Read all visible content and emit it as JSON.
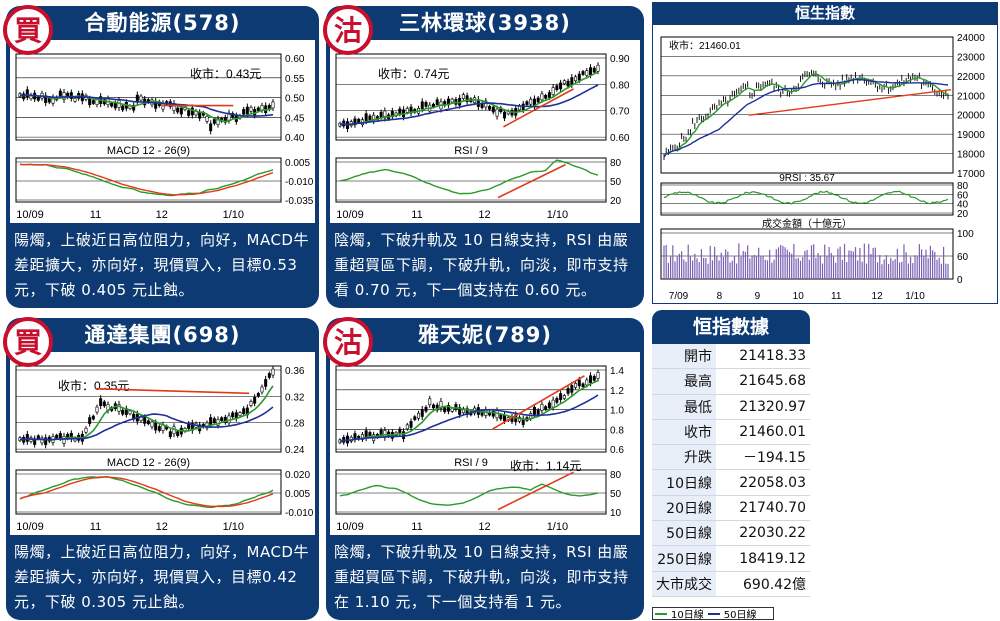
{
  "panels": [
    {
      "title": "合動能源(578)",
      "badge": "買",
      "close_label": "收市：0.43元",
      "indicator_label": "MACD 12 - 26(9)",
      "price_ticks": [
        "0.60",
        "0.55",
        "0.50",
        "0.45",
        "0.40"
      ],
      "ind_ticks": [
        "0.005",
        "-0.010",
        "-0.035"
      ],
      "x_labels": [
        "10/09",
        "11",
        "12",
        "1/10"
      ],
      "desc": "陽燭，上破近日高位阻力，向好，MACD牛差距擴大，亦向好，現價買入，目標0.53元，下破 0.405 元止蝕。"
    },
    {
      "title": "三林環球(3938)",
      "badge": "沽",
      "close_label": "收市：0.74元",
      "indicator_label": "RSI / 9",
      "price_ticks": [
        "0.90",
        "0.80",
        "0.70",
        "0.60"
      ],
      "ind_ticks": [
        "80",
        "50",
        "20"
      ],
      "x_labels": [
        "10/09",
        "11",
        "12",
        "1/10"
      ],
      "desc": "陰燭，下破升軌及 10 日線支持，RSI 由嚴重超買區下調，下破升軌，向淡，即市支持看 0.70 元，下一個支持在 0.60 元。"
    },
    {
      "title": "通達集團(698)",
      "badge": "買",
      "close_label": "收市：0.35元",
      "indicator_label": "MACD 12 - 26(9)",
      "price_ticks": [
        "0.36",
        "0.32",
        "0.28",
        "0.24"
      ],
      "ind_ticks": [
        "0.020",
        "0.005",
        "-0.010"
      ],
      "x_labels": [
        "10/09",
        "11",
        "12",
        "1/10"
      ],
      "desc": "陽燭，上破近日高位阻力，向好，MACD牛差距擴大，亦向好，現價買入，目標0.42元，下破 0.305 元止蝕。"
    },
    {
      "title": "雅天妮(789)",
      "badge": "沽",
      "close_label": "收市：1.14元",
      "indicator_label": "RSI / 9",
      "price_ticks": [
        "1.4",
        "1.2",
        "1.0",
        "0.8",
        "0.6"
      ],
      "ind_ticks": [
        "80",
        "50",
        "10"
      ],
      "x_labels": [
        "10/09",
        "11",
        "12",
        "1/10"
      ],
      "desc": "陰燭，下破升軌及 10 日線支持，RSI 由嚴重超買區下調，下破升軌，向淡，即市支持在 1.10 元，下一個支持看 1 元。"
    }
  ],
  "hsi": {
    "title": "恒生指數",
    "close_label": "收市：21460.01",
    "rsi_label": "9RSI : 35.67",
    "turnover_label": "成交金額（十億元）",
    "price_ticks": [
      "24000",
      "23000",
      "22000",
      "21000",
      "20000",
      "19000",
      "18000",
      "17000"
    ],
    "rsi_ticks": [
      "80",
      "60",
      "40",
      "20"
    ],
    "vol_ticks": [
      "100",
      "60",
      "0"
    ],
    "x_labels": [
      "7/09",
      "8",
      "9",
      "10",
      "11",
      "12",
      "1/10"
    ]
  },
  "stats": {
    "title": "恒指數據",
    "rows": [
      {
        "label": "開市",
        "value": "21418.33"
      },
      {
        "label": "最高",
        "value": "21645.68"
      },
      {
        "label": "最低",
        "value": "21320.97"
      },
      {
        "label": "收市",
        "value": "21460.01"
      },
      {
        "label": "升跌",
        "value": "－194.15"
      },
      {
        "label": "10日線",
        "value": "22058.03"
      },
      {
        "label": "20日線",
        "value": "21740.70"
      },
      {
        "label": "50日線",
        "value": "22030.22"
      },
      {
        "label": "250日線",
        "value": "18419.12"
      },
      {
        "label": "大市成交",
        "value": "690.42億"
      }
    ]
  },
  "legend": {
    "ma10": "10日線",
    "ma50": "50日線"
  },
  "colors": {
    "ma10": "#2a9a2a",
    "ma50": "#1f2f9a",
    "trend": "#e03a1a",
    "navy": "#0d3a73"
  },
  "chart_data": [
    {
      "type": "line",
      "title": "合動能源(578)",
      "ylim": [
        0.35,
        0.6
      ],
      "close": 0.43,
      "indicator": "MACD 12 - 26(9)",
      "ind_ylim": [
        -0.035,
        0.005
      ]
    },
    {
      "type": "line",
      "title": "三林環球(3938)",
      "ylim": [
        0.5,
        0.9
      ],
      "close": 0.74,
      "indicator": "RSI / 9",
      "ind_ylim": [
        20,
        80
      ]
    },
    {
      "type": "line",
      "title": "通達集團(698)",
      "ylim": [
        0.22,
        0.36
      ],
      "close": 0.35,
      "indicator": "MACD 12 - 26(9)",
      "ind_ylim": [
        -0.01,
        0.02
      ]
    },
    {
      "type": "line",
      "title": "雅天妮(789)",
      "ylim": [
        0.6,
        1.4
      ],
      "close": 1.14,
      "indicator": "RSI / 9",
      "ind_ylim": [
        10,
        80
      ]
    },
    {
      "type": "line",
      "title": "恒生指數",
      "ylim": [
        17000,
        24000
      ],
      "close": 21460.01,
      "rsi": 35.67
    }
  ]
}
